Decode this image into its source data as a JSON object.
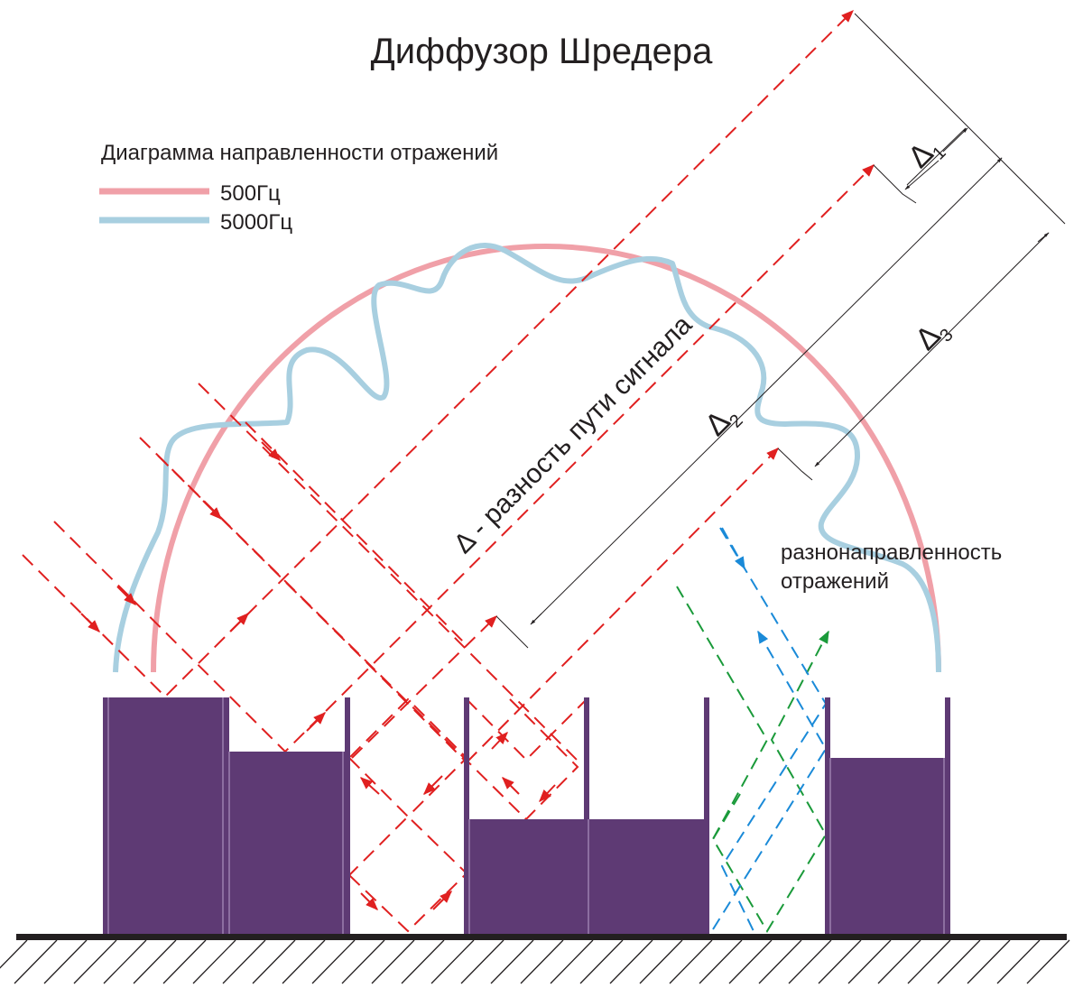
{
  "title": "Диффузор Шредера",
  "legend": {
    "title": "Диаграмма направленности отражений",
    "items": [
      {
        "label": "500Гц",
        "color": "#f0a0a8"
      },
      {
        "label": "5000Гц",
        "color": "#a8cfe0"
      }
    ]
  },
  "annotations": {
    "path_difference": "Δ - разность пути сигнала",
    "delta": "Δ",
    "sub1": "1",
    "sub2": "2",
    "sub3": "3",
    "scatter_line1": "разнонаправленность",
    "scatter_line2": "отражений"
  },
  "colors": {
    "wells": "#5e3a74",
    "incident_rays": "#e02020",
    "green_rays": "#1a9a3a",
    "blue_rays": "#1a8ad8",
    "floor": "#231f20"
  }
}
